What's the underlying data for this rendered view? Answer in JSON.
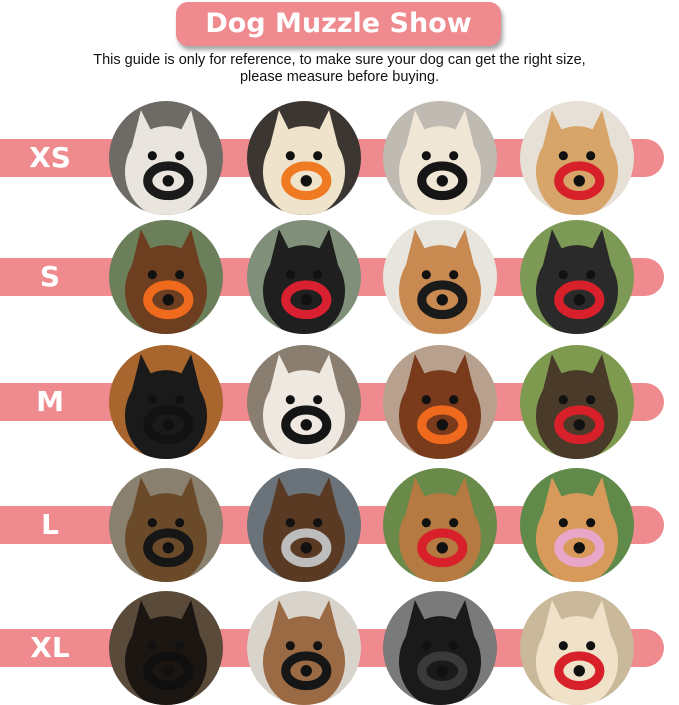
{
  "title": "Dog Muzzle Show",
  "note_line1": "This guide is only for reference, to make sure your dog can get the right size,",
  "note_line2": "please measure before buying.",
  "colors": {
    "accent": "#ef8a8f",
    "text": "#ffffff"
  },
  "rows": [
    {
      "size": "XS",
      "photos": [
        {
          "coat": "#e9e5de",
          "bg": "#6e6a66",
          "muzzle": "#1a1a1a"
        },
        {
          "coat": "#efe3cc",
          "bg": "#3b3632",
          "muzzle": "#f07a22"
        },
        {
          "coat": "#efe6d6",
          "bg": "#bfbab2",
          "muzzle": "#151515"
        },
        {
          "coat": "#d7a56a",
          "bg": "#e6e0d6",
          "muzzle": "#d8202b"
        }
      ]
    },
    {
      "size": "S",
      "photos": [
        {
          "coat": "#6e3e20",
          "bg": "#6b7f5a",
          "muzzle": "#f06a1e"
        },
        {
          "coat": "#1f1f1f",
          "bg": "#7f8f7a",
          "muzzle": "#d82030"
        },
        {
          "coat": "#c98a52",
          "bg": "#e8e4de",
          "muzzle": "#1a1a1a"
        },
        {
          "coat": "#2a2a2a",
          "bg": "#7c9a55",
          "muzzle": "#d8202b"
        }
      ]
    },
    {
      "size": "M",
      "photos": [
        {
          "coat": "#1a1a1a",
          "bg": "#a8652d",
          "muzzle": "#121212"
        },
        {
          "coat": "#eee8e0",
          "bg": "#8a7e70",
          "muzzle": "#151515"
        },
        {
          "coat": "#7a3a1c",
          "bg": "#b7a08e",
          "muzzle": "#f06a1e"
        },
        {
          "coat": "#4a3a2a",
          "bg": "#7d9a4e",
          "muzzle": "#d8202b"
        }
      ]
    },
    {
      "size": "L",
      "photos": [
        {
          "coat": "#6b4a2a",
          "bg": "#8a8070",
          "muzzle": "#161616"
        },
        {
          "coat": "#5a3a22",
          "bg": "#6a737a",
          "muzzle": "#bdbdbd"
        },
        {
          "coat": "#b57a42",
          "bg": "#6a8a4a",
          "muzzle": "#d8202b"
        },
        {
          "coat": "#d89a5a",
          "bg": "#5f8a4a",
          "muzzle": "#e8a6c8"
        }
      ]
    },
    {
      "size": "XL",
      "photos": [
        {
          "coat": "#1c1612",
          "bg": "#5a4a3a",
          "muzzle": "#0f0f0f"
        },
        {
          "coat": "#9a6a45",
          "bg": "#d8d4cc",
          "muzzle": "#161616"
        },
        {
          "coat": "#1a1a1a",
          "bg": "#7a7a7a",
          "muzzle": "#3a3a3a"
        },
        {
          "coat": "#efe2c8",
          "bg": "#c9b89a",
          "muzzle": "#d8202b"
        }
      ]
    }
  ]
}
